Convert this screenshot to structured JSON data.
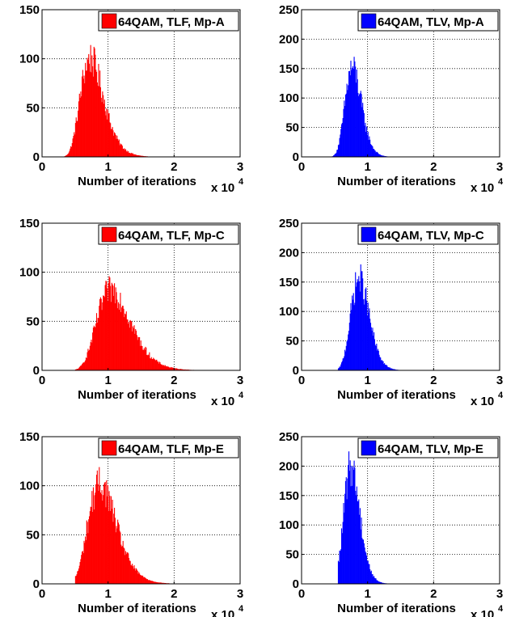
{
  "figure": {
    "xlabel": "Number of iterations",
    "x_multiplier_base": "x 10",
    "x_multiplier_exp": "4"
  },
  "chart_data": [
    {
      "type": "bar",
      "legend": "64QAM, TLF, Mp-A",
      "color": "#ff0000",
      "xlabel": "Number of iterations",
      "xlim": [
        0,
        3
      ],
      "ylim": [
        0,
        150
      ],
      "xticks": [
        0,
        1,
        2,
        3
      ],
      "yticks": [
        0,
        50,
        100,
        150
      ],
      "grid": true,
      "legend_position": "top-right",
      "x_scale_label": "x 10^4",
      "peak_x": 0.73,
      "peak_y": 114,
      "nonzero_range": [
        0.32,
        2.6
      ]
    },
    {
      "type": "bar",
      "legend": "64QAM, TLV, Mp-A",
      "color": "#0000ff",
      "xlabel": "Number of iterations",
      "xlim": [
        0,
        3
      ],
      "ylim": [
        0,
        250
      ],
      "xticks": [
        0,
        1,
        2,
        3
      ],
      "yticks": [
        0,
        50,
        100,
        150,
        200,
        250
      ],
      "grid": true,
      "legend_position": "top-right",
      "x_scale_label": "x 10^4",
      "peak_x": 0.77,
      "peak_y": 170,
      "nonzero_range": [
        0.45,
        2.5
      ]
    },
    {
      "type": "bar",
      "legend": "64QAM, TLF, Mp-C",
      "color": "#ff0000",
      "xlabel": "Number of iterations",
      "xlim": [
        0,
        3
      ],
      "ylim": [
        0,
        150
      ],
      "xticks": [
        0,
        1,
        2,
        3
      ],
      "yticks": [
        0,
        50,
        100,
        150
      ],
      "grid": true,
      "legend_position": "top-right",
      "x_scale_label": "x 10^4",
      "peak_x": 1.05,
      "peak_y": 96,
      "nonzero_range": [
        0.5,
        2.6
      ]
    },
    {
      "type": "bar",
      "legend": "64QAM, TLV, Mp-C",
      "color": "#0000ff",
      "xlabel": "Number of iterations",
      "xlim": [
        0,
        3
      ],
      "ylim": [
        0,
        250
      ],
      "xticks": [
        0,
        1,
        2,
        3
      ],
      "yticks": [
        0,
        50,
        100,
        150,
        200,
        250
      ],
      "grid": true,
      "legend_position": "top-right",
      "x_scale_label": "x 10^4",
      "peak_x": 0.87,
      "peak_y": 180,
      "nonzero_range": [
        0.55,
        2.5
      ]
    },
    {
      "type": "bar",
      "legend": "64QAM, TLF, Mp-E",
      "color": "#ff0000",
      "xlabel": "Number of iterations",
      "xlim": [
        0,
        3
      ],
      "ylim": [
        0,
        150
      ],
      "xticks": [
        0,
        1,
        2,
        3
      ],
      "yticks": [
        0,
        50,
        100,
        150
      ],
      "grid": true,
      "legend_position": "top-right",
      "x_scale_label": "x 10^4",
      "peak_x": 0.88,
      "peak_y": 119,
      "nonzero_range": [
        0.5,
        2.6
      ]
    },
    {
      "type": "bar",
      "legend": "64QAM, TLV, Mp-E",
      "color": "#0000ff",
      "xlabel": "Number of iterations",
      "xlim": [
        0,
        3
      ],
      "ylim": [
        0,
        250
      ],
      "xticks": [
        0,
        1,
        2,
        3
      ],
      "yticks": [
        0,
        50,
        100,
        150,
        200,
        250
      ],
      "grid": true,
      "legend_position": "top-right",
      "x_scale_label": "x 10^4",
      "peak_x": 0.75,
      "peak_y": 225,
      "nonzero_range": [
        0.55,
        2.5
      ]
    }
  ]
}
